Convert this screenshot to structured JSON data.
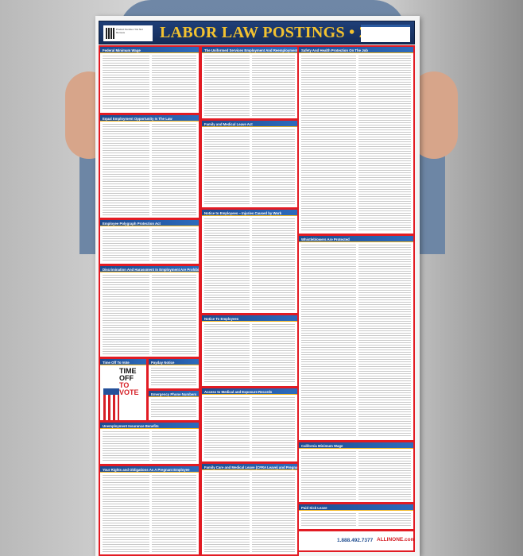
{
  "poster": {
    "title": "LABOR LAW POSTINGS • 2018",
    "product_box": "Product Number / Do Not Remove",
    "footer_phone": "1.888.492.7377",
    "footer_site": "ALLINONE.com",
    "accent_colors": {
      "header_blue": "#1f3f78",
      "title_gold": "#f2c230",
      "border_red": "#e21b23"
    },
    "sections": [
      {
        "heading": "Federal Minimum Wage"
      },
      {
        "heading": "Equal Employment Opportunity Is The Law"
      },
      {
        "heading": "Employee Polygraph Protection Act"
      },
      {
        "heading": "Discrimination And Harassment In Employment Are Prohibited By Law"
      },
      {
        "heading": "Time Off To Vote"
      },
      {
        "heading": "Payday Notice"
      },
      {
        "heading": "Emergency Phone Numbers"
      },
      {
        "heading": "Unemployment Insurance Benefits"
      },
      {
        "heading": "Your Rights and Obligations As A Pregnant Employee"
      },
      {
        "heading": "The Uniformed Services Employment And Reemployment Rights Act"
      },
      {
        "heading": "Family and Medical Leave Act"
      },
      {
        "heading": "Notice to Employees – Injuries Caused by Work"
      },
      {
        "heading": "Notice To Employees"
      },
      {
        "heading": "Access to Medical and Exposure Records"
      },
      {
        "heading": "Family Care and Medical Leave (CFRA Leave) and Pregnancy Disability Leave"
      },
      {
        "heading": "Safety And Health Protection On The Job"
      },
      {
        "heading": "Whistleblowers Are Protected"
      },
      {
        "heading": "California Minimum Wage"
      },
      {
        "heading": "Paid Sick Leave"
      }
    ],
    "vote_title_1": "TIME OFF",
    "vote_title_2": "TO VOTE"
  }
}
